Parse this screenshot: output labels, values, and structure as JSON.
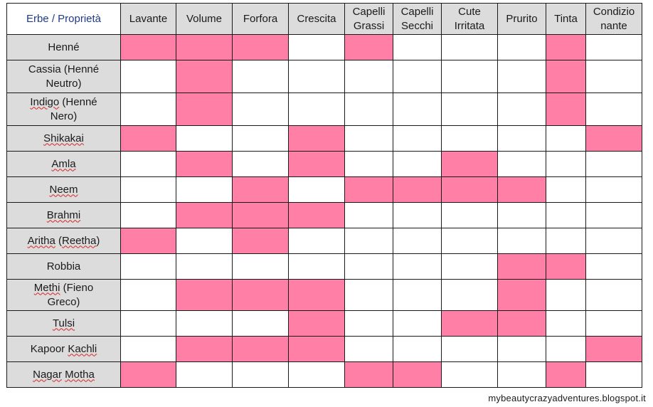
{
  "table": {
    "corner_label": "Erbe / Proprietà",
    "columns": [
      "Lavante",
      "Volume",
      "Forfora",
      "Crescita",
      "Capelli Grassi",
      "Capelli Secchi",
      "Cute Irritata",
      "Prurito",
      "Tinta",
      "Condizionante"
    ],
    "column_display": [
      [
        "Lavante"
      ],
      [
        "Volume"
      ],
      [
        "Forfora"
      ],
      [
        "Crescita"
      ],
      [
        "Capelli",
        "Grassi"
      ],
      [
        "Capelli",
        "Secchi"
      ],
      [
        "Cute",
        "Irritata"
      ],
      [
        "Prurito"
      ],
      [
        "Tinta"
      ],
      [
        "Condizio",
        "nante"
      ]
    ],
    "rows": [
      {
        "herb_lines": [
          "Henné"
        ],
        "marks": [
          1,
          1,
          1,
          0,
          1,
          0,
          0,
          0,
          1,
          0
        ]
      },
      {
        "herb_lines": [
          "Cassia (Henné",
          "Neutro)"
        ],
        "marks": [
          0,
          1,
          0,
          0,
          0,
          0,
          0,
          0,
          1,
          0
        ]
      },
      {
        "herb_lines": [
          "Indigo (Henné",
          "Nero)"
        ],
        "marks": [
          0,
          1,
          0,
          0,
          0,
          0,
          0,
          0,
          1,
          0
        ]
      },
      {
        "herb_lines": [
          "Shikakai"
        ],
        "marks": [
          1,
          0,
          0,
          1,
          0,
          0,
          0,
          0,
          0,
          1
        ]
      },
      {
        "herb_lines": [
          "Amla"
        ],
        "marks": [
          0,
          1,
          0,
          1,
          0,
          0,
          1,
          0,
          0,
          0
        ]
      },
      {
        "herb_lines": [
          "Neem"
        ],
        "marks": [
          0,
          0,
          1,
          0,
          1,
          1,
          1,
          1,
          0,
          0
        ]
      },
      {
        "herb_lines": [
          "Brahmi"
        ],
        "marks": [
          0,
          1,
          1,
          1,
          0,
          0,
          0,
          0,
          0,
          0
        ]
      },
      {
        "herb_lines": [
          "Aritha (Reetha)"
        ],
        "marks": [
          1,
          0,
          1,
          0,
          0,
          0,
          0,
          0,
          0,
          0
        ]
      },
      {
        "herb_lines": [
          "Robbia"
        ],
        "marks": [
          0,
          0,
          0,
          0,
          0,
          0,
          0,
          1,
          1,
          0
        ]
      },
      {
        "herb_lines": [
          "Methi (Fieno",
          "Greco)"
        ],
        "marks": [
          0,
          1,
          1,
          1,
          0,
          0,
          0,
          1,
          0,
          0
        ]
      },
      {
        "herb_lines": [
          "Tulsi"
        ],
        "marks": [
          0,
          0,
          0,
          1,
          0,
          0,
          1,
          1,
          0,
          0
        ]
      },
      {
        "herb_lines": [
          "Kapoor Kachli"
        ],
        "marks": [
          0,
          1,
          1,
          1,
          0,
          0,
          0,
          0,
          0,
          1
        ]
      },
      {
        "herb_lines": [
          "Nagar Motha"
        ],
        "marks": [
          1,
          0,
          0,
          0,
          1,
          1,
          0,
          0,
          1,
          0
        ]
      }
    ]
  },
  "colors": {
    "marked": "#ff7fa6",
    "header_bg": "#dcdcdc",
    "corner_text": "#1f3a8a"
  },
  "credit": "mybeautycrazyadventures.blogspot.it"
}
